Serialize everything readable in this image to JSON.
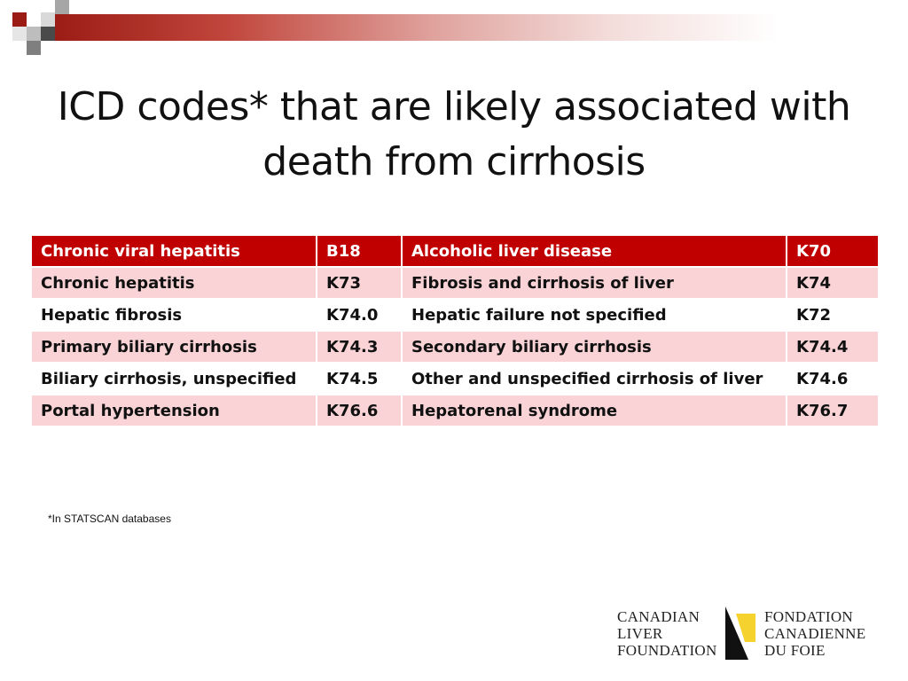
{
  "title": {
    "line1": "ICD codes* that are likely associated with",
    "line2": "death from cirrhosis"
  },
  "table": {
    "rows": [
      {
        "style": "head",
        "cells": [
          "Chronic viral hepatitis",
          "B18",
          "Alcoholic liver disease",
          "K70"
        ]
      },
      {
        "style": "pink",
        "cells": [
          "Chronic hepatitis",
          "K73",
          "Fibrosis and cirrhosis of liver",
          "K74"
        ]
      },
      {
        "style": "white",
        "cells": [
          "Hepatic fibrosis",
          "K74.0",
          "Hepatic failure not specified",
          "K72"
        ]
      },
      {
        "style": "pink",
        "cells": [
          "Primary biliary cirrhosis",
          "K74.3",
          "Secondary biliary cirrhosis",
          "K74.4"
        ]
      },
      {
        "style": "white",
        "cells": [
          "Biliary cirrhosis, unspecified",
          "K74.5",
          "Other and unspecified cirrhosis of liver",
          "K74.6"
        ]
      },
      {
        "style": "pink",
        "cells": [
          "Portal hypertension",
          "K76.6",
          "Hepatorenal syndrome",
          "K76.7"
        ]
      }
    ]
  },
  "footnote": "*In STATSCAN databases",
  "logo": {
    "left_lines": [
      "CANADIAN",
      "LIVER",
      "FOUNDATION"
    ],
    "right_lines": [
      "FONDATION",
      "CANADIENNE",
      "DU FOIE"
    ]
  },
  "colors": {
    "header_row": "#c00000",
    "pink_row": "#f9d3d6",
    "logo_yellow": "#f5d22e"
  },
  "icons": [
    "decorative-squares-icon",
    "liver-foundation-logo-icon"
  ]
}
